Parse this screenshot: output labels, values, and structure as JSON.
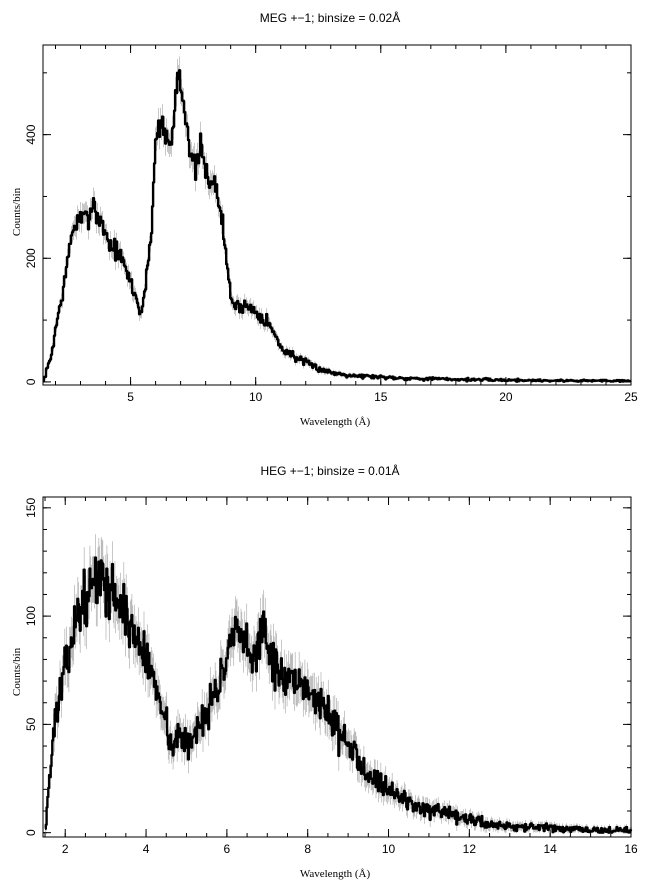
{
  "chart_data": [
    {
      "type": "line",
      "title": "MEG +−1; binsize = 0.02Å",
      "xlabel": "Wavelength (Å)",
      "ylabel": "Counts/bin",
      "xlim": [
        1.5,
        25
      ],
      "ylim": [
        -5,
        545
      ],
      "xticks": [
        5,
        10,
        15,
        20,
        25
      ],
      "yticks": [
        0,
        200,
        400
      ],
      "binsize": 0.02,
      "grid": false,
      "series": [
        {
          "x": [
            1.5,
            1.8,
            2.0,
            2.2,
            2.4,
            2.6,
            2.8,
            3.0,
            3.2,
            3.4,
            3.5,
            3.6,
            3.8,
            4.0,
            4.2,
            4.4,
            4.6,
            4.8,
            5.0,
            5.2,
            5.4,
            5.6,
            5.8,
            6.0,
            6.2,
            6.4,
            6.6,
            6.8,
            6.9,
            7.0,
            7.2,
            7.4,
            7.6,
            7.8,
            8.0,
            8.2,
            8.4,
            8.6,
            8.8,
            9.0,
            9.2,
            9.5,
            10.0,
            10.5,
            11.0,
            11.5,
            12.0,
            12.5,
            13.0,
            14.0,
            15.0,
            16.0,
            17.0,
            18.0,
            20.0,
            22.0,
            25.0
          ],
          "values": [
            2,
            40,
            90,
            130,
            175,
            235,
            258,
            262,
            265,
            275,
            300,
            270,
            258,
            240,
            218,
            215,
            200,
            180,
            160,
            135,
            110,
            160,
            240,
            400,
            425,
            395,
            380,
            470,
            510,
            475,
            435,
            355,
            345,
            380,
            335,
            330,
            310,
            275,
            200,
            135,
            120,
            125,
            115,
            95,
            55,
            42,
            30,
            22,
            15,
            10,
            8,
            6,
            5,
            4,
            3,
            2,
            2
          ]
        }
      ]
    },
    {
      "type": "line",
      "title": "HEG +−1; binsize = 0.01Å",
      "xlabel": "Wavelength (Å)",
      "ylabel": "Counts/bin",
      "xlim": [
        1.45,
        16
      ],
      "ylim": [
        -2,
        155
      ],
      "xticks": [
        2,
        4,
        6,
        8,
        10,
        12,
        14,
        16
      ],
      "yticks": [
        0,
        50,
        100,
        150
      ],
      "binsize": 0.01,
      "grid": false,
      "series": [
        {
          "x": [
            1.5,
            1.6,
            1.7,
            1.8,
            2.0,
            2.2,
            2.4,
            2.6,
            2.8,
            3.0,
            3.2,
            3.4,
            3.6,
            3.8,
            4.0,
            4.2,
            4.4,
            4.6,
            4.8,
            5.0,
            5.2,
            5.4,
            5.6,
            5.8,
            6.0,
            6.2,
            6.4,
            6.6,
            6.8,
            6.9,
            7.0,
            7.2,
            7.4,
            7.6,
            7.8,
            8.0,
            8.2,
            8.4,
            8.6,
            8.8,
            9.0,
            9.5,
            10.0,
            10.5,
            11.0,
            11.5,
            12.0,
            12.5,
            13.0,
            14.0,
            15.0,
            16.0
          ],
          "values": [
            2,
            25,
            45,
            60,
            75,
            95,
            105,
            112,
            118,
            115,
            110,
            105,
            95,
            88,
            80,
            70,
            60,
            40,
            45,
            40,
            45,
            55,
            60,
            70,
            80,
            92,
            88,
            78,
            90,
            100,
            85,
            75,
            72,
            68,
            65,
            68,
            62,
            58,
            52,
            45,
            40,
            28,
            20,
            14,
            10,
            8,
            6,
            4,
            3,
            2,
            1,
            1
          ]
        }
      ]
    }
  ]
}
